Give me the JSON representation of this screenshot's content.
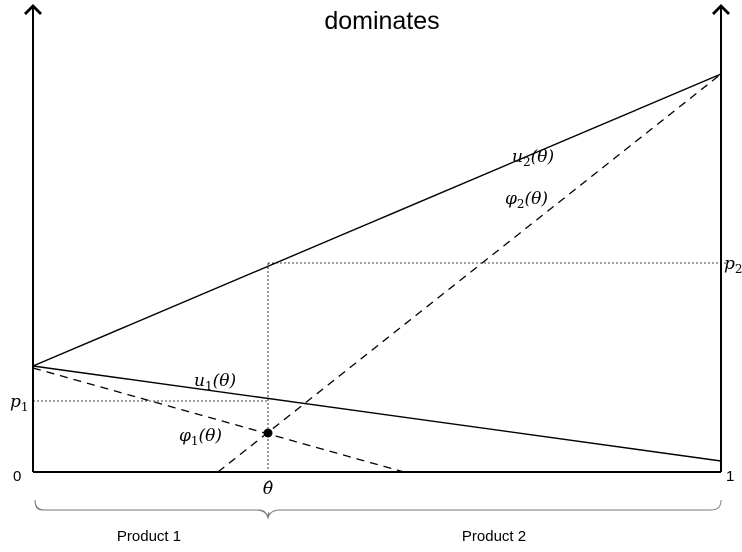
{
  "title": "dominates",
  "axis": {
    "origin_label": "0",
    "right_label": "1",
    "p1_label": "p",
    "p1_sub": "1",
    "p2_label": "p",
    "p2_sub": "2",
    "theta_hat_label": "θ̂"
  },
  "curves": {
    "u1": {
      "name": "u",
      "sub": "1",
      "arg": "(θ)"
    },
    "u2": {
      "name": "u",
      "sub": "2",
      "arg": "(θ)"
    },
    "phi1": {
      "name": "φ",
      "sub": "1",
      "arg": "(θ)"
    },
    "phi2": {
      "name": "φ",
      "sub": "2",
      "arg": "(θ)"
    }
  },
  "segments": {
    "product1": "Product 1",
    "product2": "Product 2"
  }
}
